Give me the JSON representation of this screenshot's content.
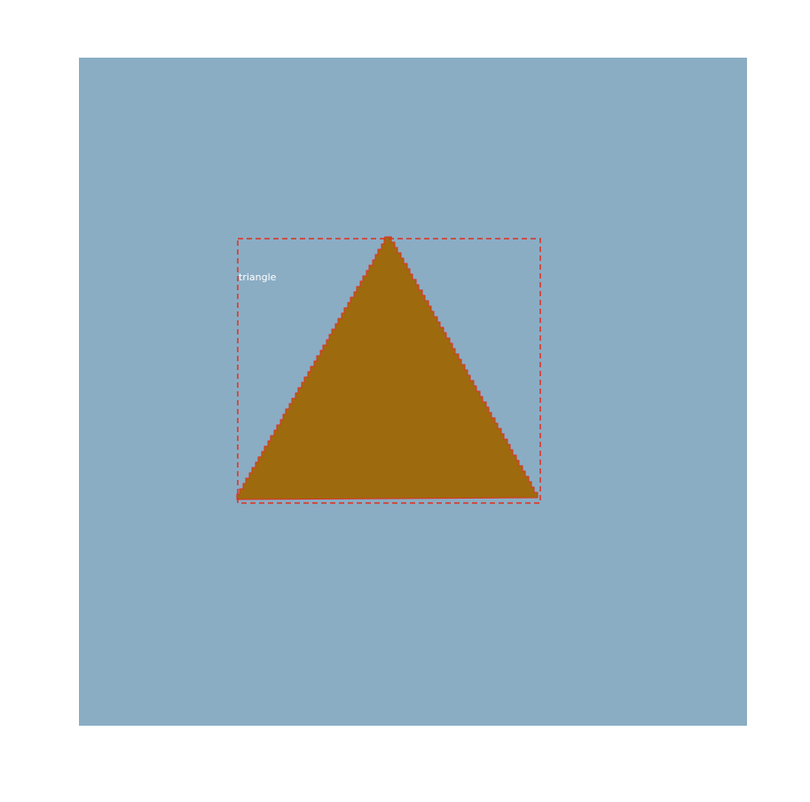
{
  "annotation": {
    "label": "triangle",
    "shape_fill": "#9e6a0e",
    "shape_outline": "#e03020",
    "box_color": "#e03020",
    "background": "#8aadc4"
  }
}
